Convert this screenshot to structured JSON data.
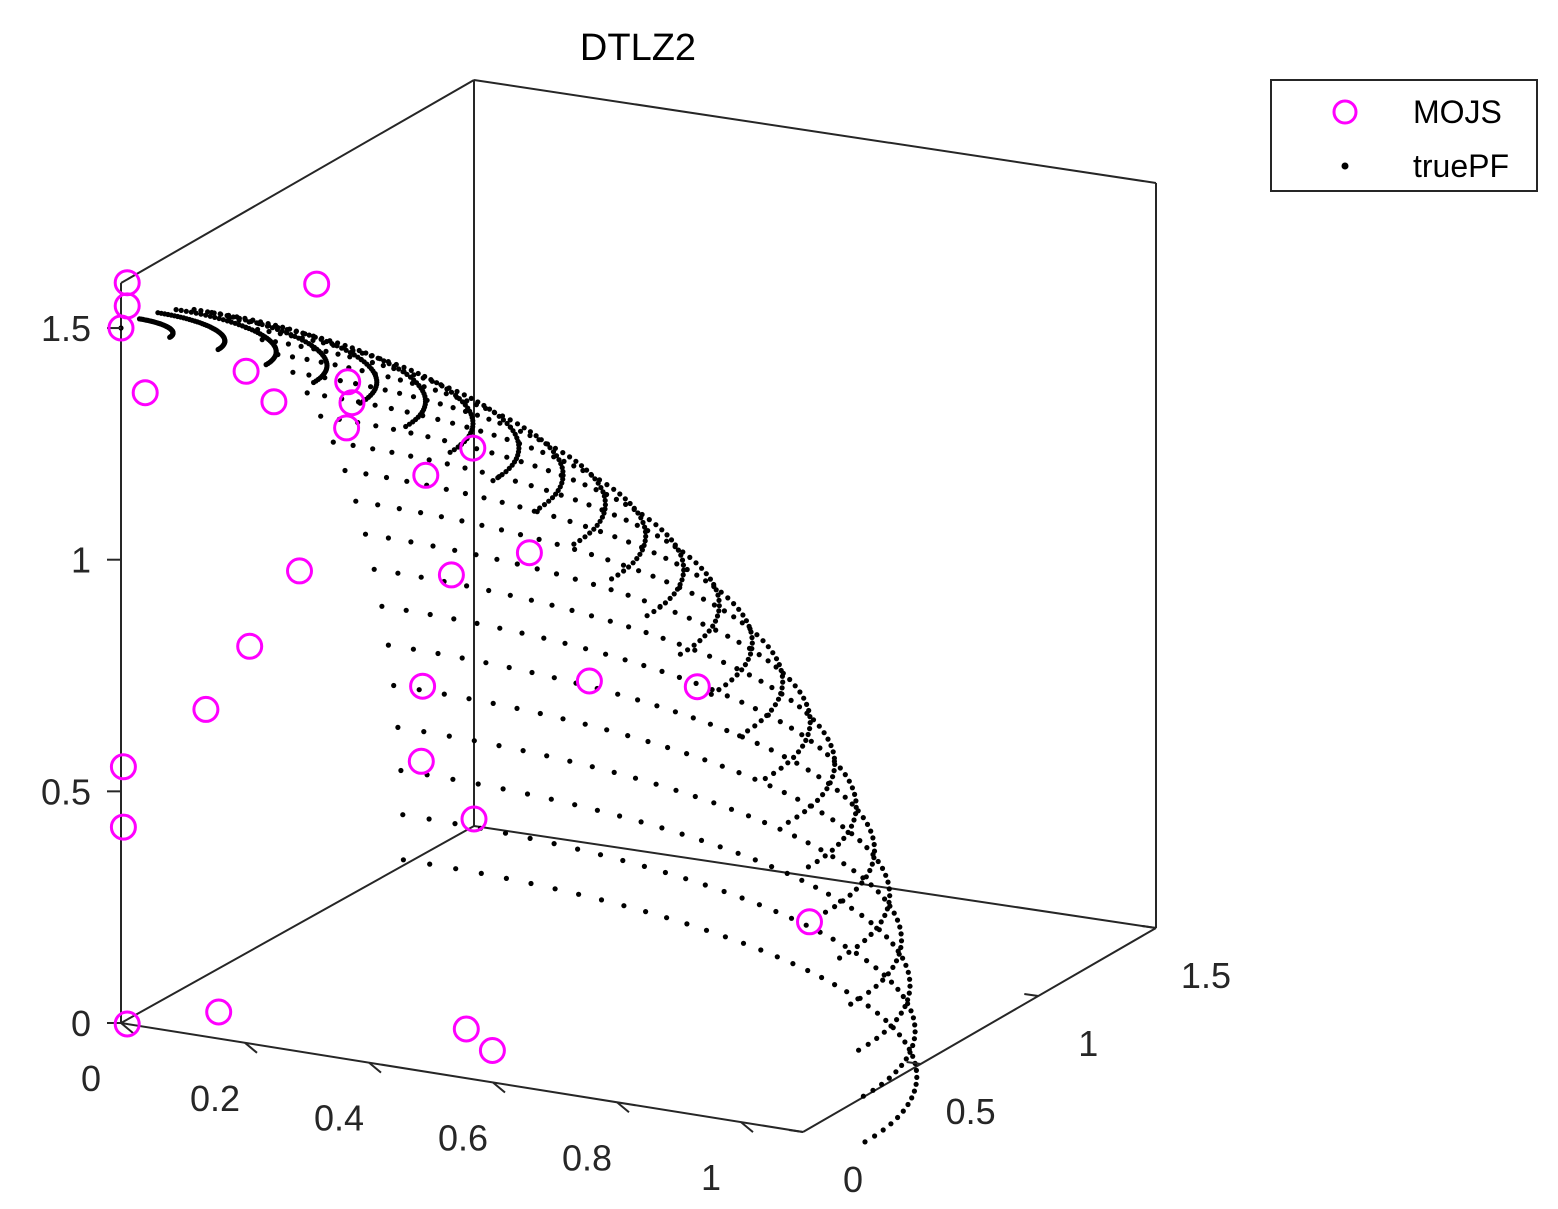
{
  "chart_data": {
    "type": "scatter3d",
    "title": "DTLZ2",
    "view": "matlab-default-3d",
    "axes": {
      "x": {
        "lim": [
          0,
          1.1
        ],
        "ticks": [
          0,
          0.2,
          0.4,
          0.6,
          0.8,
          1
        ],
        "tick_labels": [
          "0",
          "0.2",
          "0.4",
          "0.6",
          "0.8",
          "1"
        ],
        "label": ""
      },
      "y": {
        "lim": [
          0,
          1.5
        ],
        "ticks": [
          0,
          0.5,
          1,
          1.5
        ],
        "tick_labels": [
          "0",
          "0.5",
          "1",
          "1.5"
        ],
        "label": ""
      },
      "z": {
        "lim": [
          0,
          1.5
        ],
        "ticks": [
          0,
          0.5,
          1,
          1.5
        ],
        "tick_labels": [
          "0",
          "0.5",
          "1",
          "1.5"
        ],
        "label": ""
      }
    },
    "legend": {
      "position": "top-right-outside",
      "entries": [
        "MOJS",
        "truePF"
      ]
    },
    "series": [
      {
        "name": "MOJS",
        "marker": "open-circle",
        "color": "#ff00ff",
        "points": [
          [
            0.01,
            0.0,
            0.0
          ],
          [
            0.0,
            1.5,
            0.0
          ],
          [
            0.0,
            0.0,
            1.5
          ],
          [
            0.15,
            0.02,
            0.05
          ],
          [
            0.5,
            0.15,
            0.05
          ],
          [
            0.58,
            0.05,
            0.05
          ],
          [
            0.75,
            0.95,
            0.1
          ],
          [
            0.01,
            1.25,
            0.2
          ],
          [
            0.05,
            1.15,
            0.4
          ],
          [
            0.3,
            1.2,
            0.45
          ],
          [
            0.55,
            1.0,
            0.55
          ],
          [
            0.08,
            0.15,
            0.65
          ],
          [
            0.2,
            0.02,
            0.85
          ],
          [
            0.25,
            0.1,
            1.0
          ],
          [
            0.4,
            0.35,
            0.95
          ],
          [
            0.15,
            0.9,
            0.95
          ],
          [
            0.0,
            0.65,
            1.15
          ],
          [
            0.1,
            0.7,
            1.2
          ],
          [
            0.05,
            0.4,
            1.3
          ],
          [
            0.05,
            0.85,
            1.1
          ],
          [
            0.15,
            1.1,
            0.95
          ],
          [
            0.02,
            0.05,
            1.35
          ],
          [
            0.01,
            0.0,
            1.6
          ],
          [
            0.01,
            0.0,
            1.55
          ],
          [
            0.05,
            0.7,
            1.4
          ],
          [
            0.25,
            0.3,
            1.25
          ],
          [
            0.0,
            0.01,
            0.42
          ],
          [
            0.0,
            0.01,
            0.55
          ],
          [
            0.45,
            0.55,
            0.95
          ]
        ]
      },
      {
        "name": "truePF",
        "marker": "dot",
        "color": "#000000",
        "surface": "unit-sphere-first-octant",
        "radius": 1,
        "polar_steps": 24,
        "azimuth_steps": 44
      }
    ]
  }
}
